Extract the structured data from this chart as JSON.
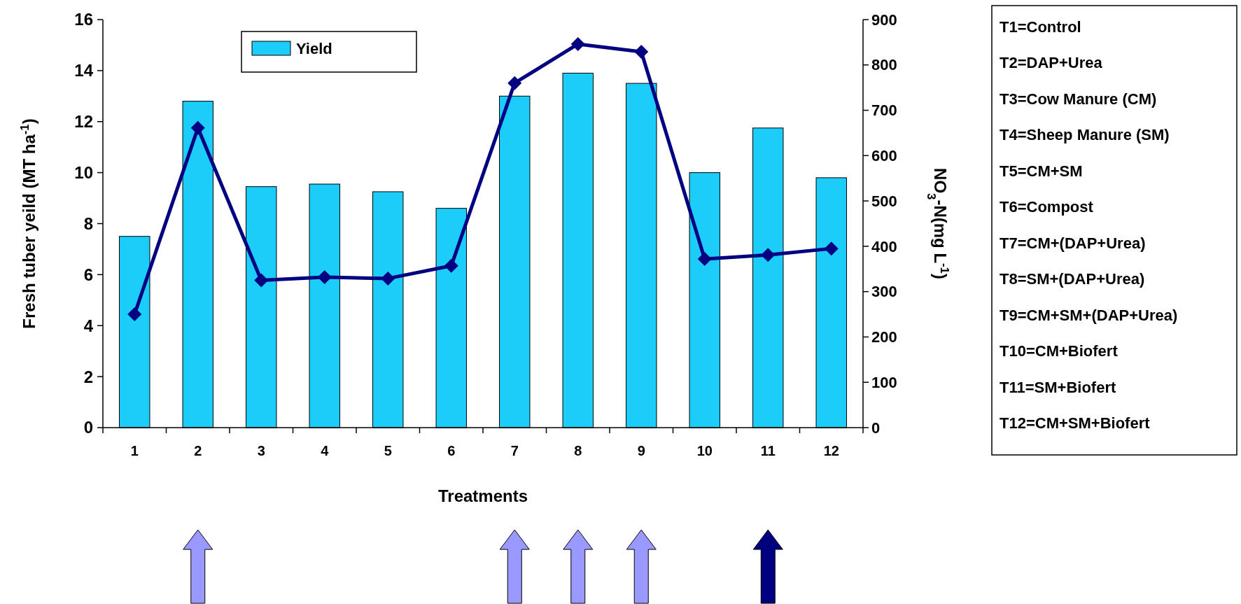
{
  "chart_data": {
    "type": "bar",
    "categories": [
      "1",
      "2",
      "3",
      "4",
      "5",
      "6",
      "7",
      "8",
      "9",
      "10",
      "11",
      "12"
    ],
    "xlabel": "Treatments",
    "ylabel": "Fresh tuber yeild (MT ha$^{-1}$)",
    "y2label": "NO$_{3}$-N(mg L$^{-1}$)",
    "ylim": [
      0,
      16
    ],
    "yticks": [
      0,
      2,
      4,
      6,
      8,
      10,
      12,
      14,
      16
    ],
    "y2lim": [
      0,
      900
    ],
    "y2ticks": [
      0,
      100,
      200,
      300,
      400,
      500,
      600,
      700,
      800,
      900
    ],
    "series": [
      {
        "name": "Yield",
        "color": "#1ccdfa",
        "values": [
          7.5,
          12.8,
          9.45,
          9.55,
          9.25,
          8.6,
          13,
          13.9,
          13.5,
          10,
          11.75,
          9.8
        ]
      },
      {
        "type": "line",
        "axis": "y2",
        "color": "#000080",
        "values": [
          250,
          661,
          325,
          332,
          329,
          357,
          760,
          846,
          829,
          372,
          381,
          395
        ]
      }
    ],
    "marker": "diamond",
    "legend": "top left",
    "grid": false,
    "annotations": [
      "T1=Control",
      "T2=DAP+Urea",
      "T3=Cow Manure (CM)",
      "T4=Sheep Manure (SM)",
      "T5=CM+SM",
      "T6=Compost",
      "T7=CM+(DAP+Urea)",
      "T8=SM+(DAP+Urea)",
      "T9=CM+SM+(DAP+Urea)",
      "T10=CM+Biofert",
      "T11=SM+Biofert",
      "T12=CM+SM+Biofert"
    ]
  }
}
